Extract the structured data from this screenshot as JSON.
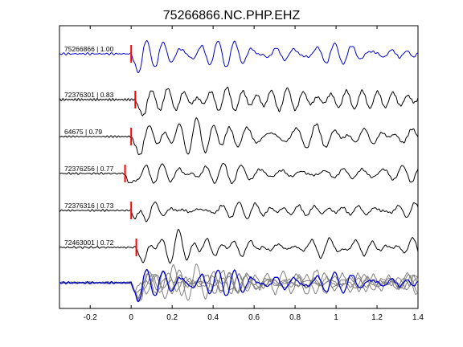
{
  "chart_data": {
    "type": "line",
    "title": "75266866.NC.PHP.EHZ",
    "xlabel": "",
    "ylabel": "",
    "xlim": [
      -0.35,
      1.4
    ],
    "x_ticks": [
      -0.2,
      0,
      0.2,
      0.4,
      0.6,
      0.8,
      1,
      1.2,
      1.4
    ],
    "x_tick_labels": [
      "-0.2",
      "0",
      "0.2",
      "0.4",
      "0.6",
      "0.8",
      "1",
      "1.2",
      "1.4"
    ],
    "grid": false,
    "colors": {
      "master": "#0000cc",
      "trace": "#000000",
      "overlay": "#808080",
      "pick": "#ff0000"
    },
    "series": [
      {
        "label": "75266866 | 1.00",
        "pick": 0.0,
        "kind": "master"
      },
      {
        "label": "72376301 | 0.83",
        "pick": 0.02,
        "kind": "trace"
      },
      {
        "label": "64675 | 0.79",
        "pick": 0.0,
        "kind": "trace"
      },
      {
        "label": "72376256 | 0.77",
        "pick": -0.03,
        "kind": "trace"
      },
      {
        "label": "72376316 | 0.73",
        "pick": 0.0,
        "kind": "trace"
      },
      {
        "label": "72463001 | 0.72",
        "pick": 0.025,
        "kind": "trace"
      }
    ],
    "stack": {
      "kind": "overlay"
    }
  }
}
